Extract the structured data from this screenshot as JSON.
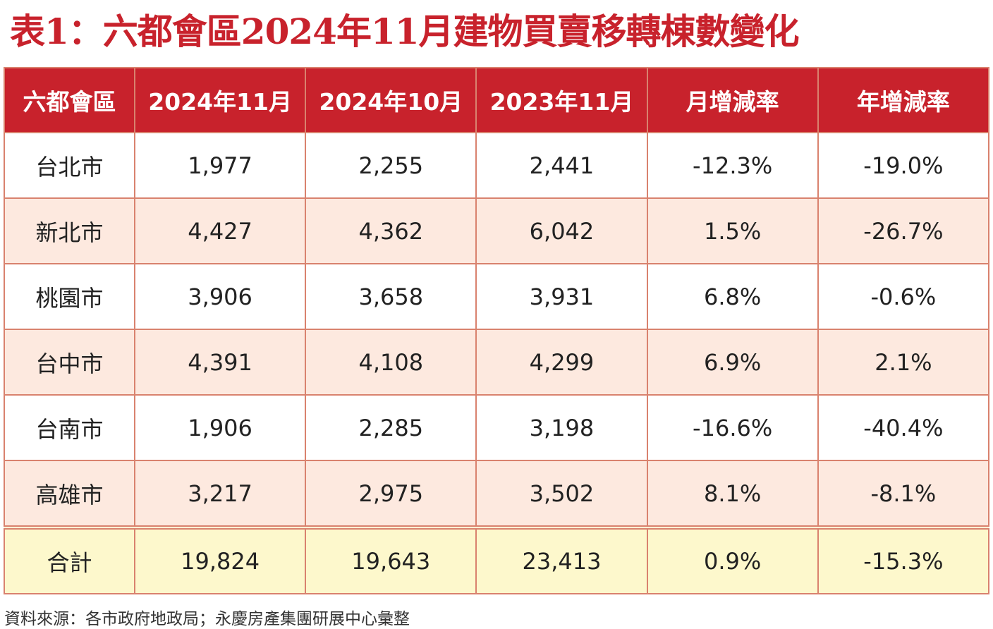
{
  "title": "表1：六都會區2024年11月建物買賣移轉棟數變化",
  "table": {
    "header": [
      "六都會區",
      "2024年11月",
      "2024年10月",
      "2023年11月",
      "月增減率",
      "年增減率"
    ],
    "rows": [
      [
        "台北市",
        "1,977",
        "2,255",
        "2,441",
        "-12.3%",
        "-19.0%"
      ],
      [
        "新北市",
        "4,427",
        "4,362",
        "6,042",
        "1.5%",
        "-26.7%"
      ],
      [
        "桃園市",
        "3,906",
        "3,658",
        "3,931",
        "6.8%",
        "-0.6%"
      ],
      [
        "台中市",
        "4,391",
        "4,108",
        "4,299",
        "6.9%",
        "2.1%"
      ],
      [
        "台南市",
        "1,906",
        "2,285",
        "3,198",
        "-16.6%",
        "-40.4%"
      ],
      [
        "高雄市",
        "3,217",
        "2,975",
        "3,502",
        "8.1%",
        "-8.1%"
      ]
    ],
    "total": [
      "合計",
      "19,824",
      "19,643",
      "23,413",
      "0.9%",
      "-15.3%"
    ]
  },
  "source": "資料來源：各市政府地政局；永慶房產集團研展中心彙整"
}
